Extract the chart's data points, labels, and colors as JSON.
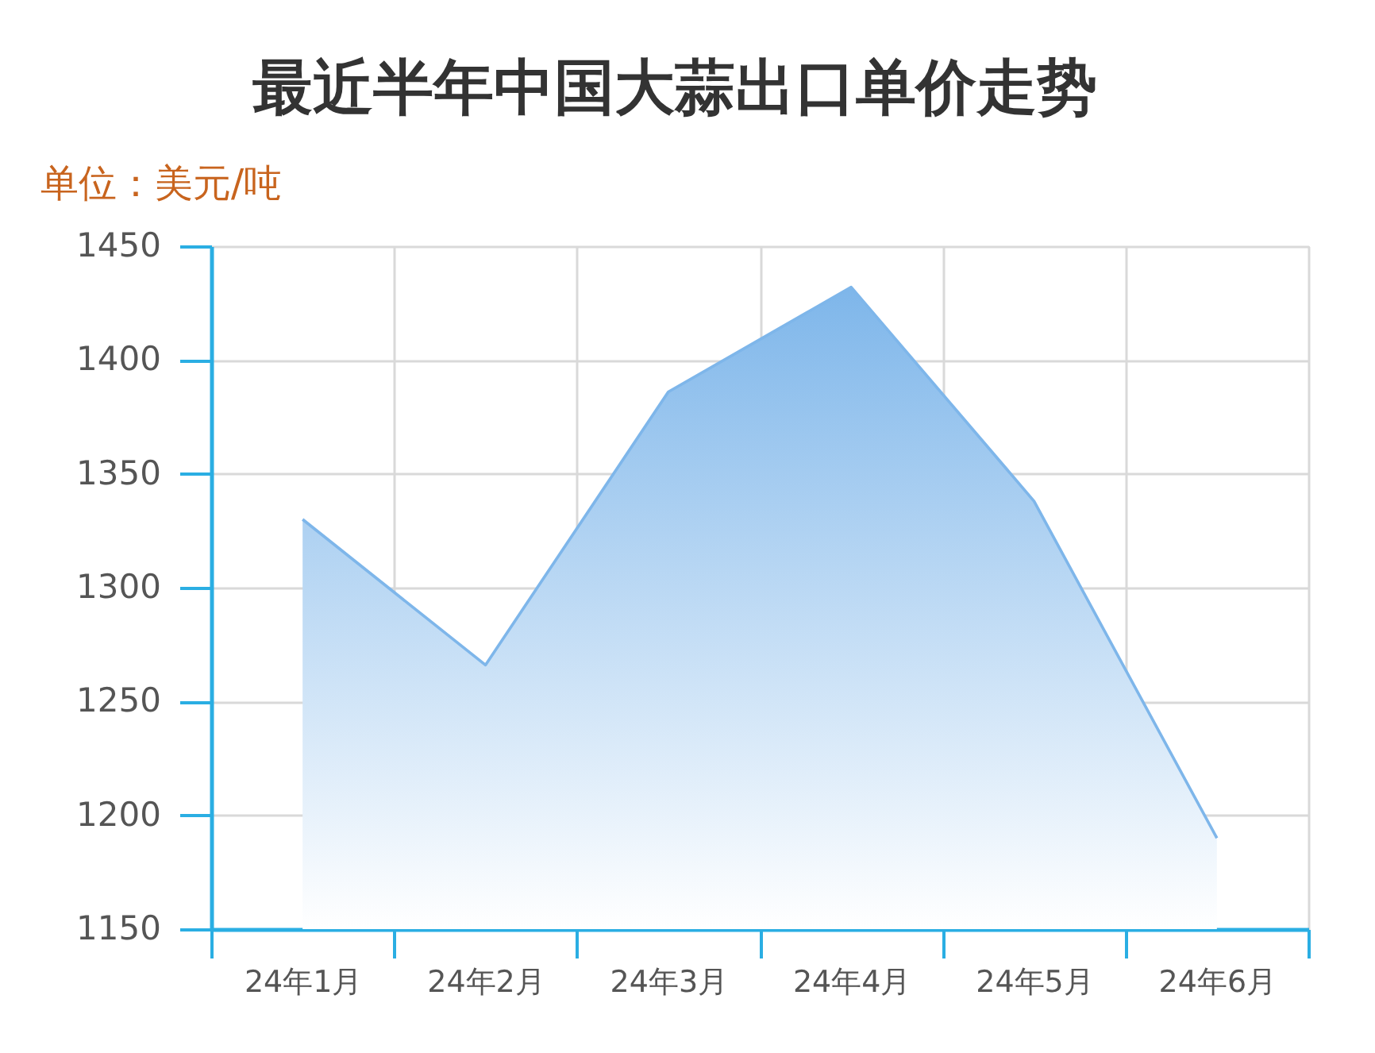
{
  "chart_data": {
    "type": "area",
    "title": "最近半年中国大蒜出口单价走势",
    "ylabel": "单位：美元/吨",
    "categories": [
      "24年1月",
      "24年2月",
      "24年3月",
      "24年4月",
      "24年5月",
      "24年6月"
    ],
    "series": [
      {
        "color": "#7eb6ea",
        "values": [
          1330,
          1266,
          1386,
          1432,
          1338,
          1190
        ]
      }
    ],
    "ylim": [
      1150,
      1450
    ],
    "yticks": [
      1150,
      1200,
      1250,
      1300,
      1350,
      1400,
      1450
    ],
    "grid": true
  }
}
